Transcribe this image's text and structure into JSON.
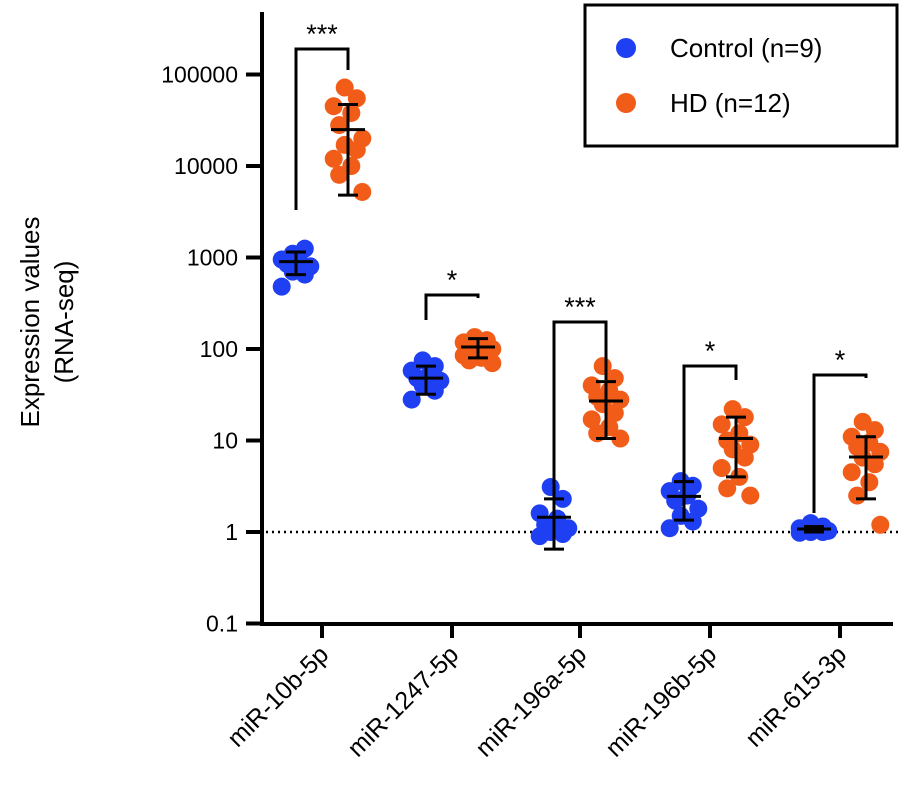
{
  "chart_data": {
    "type": "scatter",
    "ylabel": [
      "Expression values",
      "(RNA-seq)"
    ],
    "yscale": "log",
    "ylim": [
      0.1,
      500000
    ],
    "yticks": [
      0.1,
      1,
      10,
      100,
      1000,
      10000,
      100000
    ],
    "ytick_labels": [
      "0.1",
      "1",
      "10",
      "100",
      "1000",
      "10000",
      "100000"
    ],
    "reference_line": {
      "y": 1,
      "style": "dotted"
    },
    "categories": [
      "miR-10b-5p",
      "miR-1247-5p",
      "miR-196a-5p",
      "miR-196b-5p",
      "miR-615-3p"
    ],
    "legend": {
      "placement": "top-right"
    },
    "series": [
      {
        "name": "Control (n=9)",
        "color": "#1f3ff2",
        "points": [
          [
            1100,
            1250,
            950,
            900,
            850,
            800,
            700,
            650,
            480
          ],
          [
            75,
            65,
            58,
            52,
            48,
            45,
            40,
            35,
            28
          ],
          [
            3.1,
            2.3,
            1.6,
            1.4,
            1.2,
            1.1,
            1.0,
            0.95,
            0.9
          ],
          [
            3.6,
            3.2,
            2.8,
            2.5,
            2.2,
            1.8,
            1.5,
            1.3,
            1.1
          ],
          [
            1.25,
            1.15,
            1.1,
            1.08,
            1.05,
            1.03,
            1.0,
            1.0,
            0.98
          ]
        ],
        "mean": [
          900,
          48,
          1.45,
          2.45,
          1.08
        ],
        "error": [
          [
            650,
            1150
          ],
          [
            32,
            65
          ],
          [
            0.65,
            2.3
          ],
          [
            1.35,
            3.55
          ],
          [
            1.0,
            1.15
          ]
        ]
      },
      {
        "name": "HD (n=12)",
        "color": "#f25c19",
        "points": [
          [
            72000,
            55000,
            45000,
            38000,
            28000,
            20000,
            17000,
            15000,
            12000,
            10000,
            8000,
            5200
          ],
          [
            135,
            125,
            118,
            110,
            105,
            100,
            95,
            90,
            85,
            80,
            75,
            70
          ],
          [
            65,
            48,
            40,
            35,
            30,
            28,
            25,
            20,
            17,
            14,
            12,
            10.5
          ],
          [
            22,
            18,
            15,
            12,
            10,
            9,
            8,
            6.5,
            5,
            4,
            3,
            2.5
          ],
          [
            16,
            13,
            11,
            9.5,
            8.5,
            7.5,
            6.5,
            5.5,
            4.5,
            3.5,
            2.5,
            1.2
          ]
        ],
        "mean": [
          25000,
          105,
          27,
          10.5,
          6.6
        ],
        "error": [
          [
            4800,
            47000
          ],
          [
            80,
            130
          ],
          [
            10.5,
            44
          ],
          [
            4,
            18
          ],
          [
            2.3,
            11
          ]
        ]
      }
    ],
    "significance": [
      "***",
      "*",
      "***",
      "*",
      "*"
    ]
  }
}
